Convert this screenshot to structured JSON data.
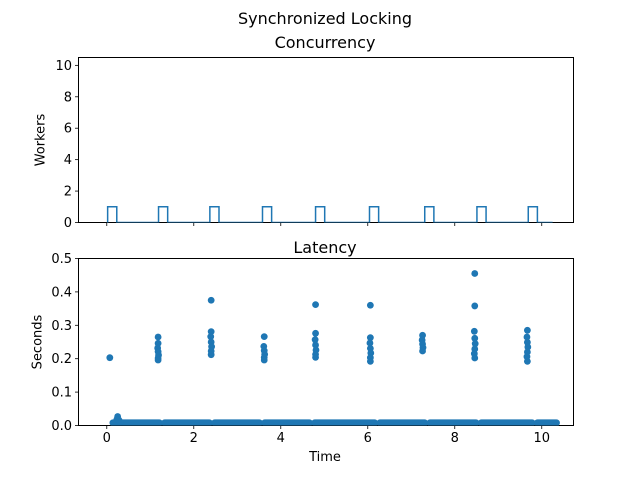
{
  "figure": {
    "suptitle": "Synchronized Locking",
    "background": "#ffffff",
    "accent": "#1f77b4"
  },
  "chart_data": [
    {
      "type": "line",
      "title": "Concurrency",
      "ylabel": "Workers",
      "xlabel": "",
      "xlim": [
        -0.65,
        10.73
      ],
      "ylim": [
        0,
        10.5
      ],
      "xtick_vals": [
        0,
        2,
        4,
        6,
        8,
        10
      ],
      "xtick_labels": [
        "",
        "",
        "",
        "",
        "",
        ""
      ],
      "ytick_vals": [
        0,
        2,
        4,
        6,
        8,
        10
      ],
      "ytick_labels": [
        "0",
        "2",
        "4",
        "6",
        "8",
        "10"
      ],
      "color": "#1f77b4",
      "step_base": 0,
      "pulse_height": 1,
      "pulses": [
        [
          0.02,
          0.23
        ],
        [
          1.19,
          1.4
        ],
        [
          2.37,
          2.58
        ],
        [
          3.58,
          3.79
        ],
        [
          4.8,
          5.01
        ],
        [
          6.04,
          6.25
        ],
        [
          7.31,
          7.52
        ],
        [
          8.51,
          8.72
        ],
        [
          9.69,
          9.9
        ]
      ],
      "line_end": 10.25,
      "grid": false,
      "legend": null
    },
    {
      "type": "scatter",
      "title": "Latency",
      "ylabel": "Seconds",
      "xlabel": "Time",
      "xlim": [
        -0.65,
        10.73
      ],
      "ylim": [
        0,
        0.5
      ],
      "xtick_vals": [
        0,
        2,
        4,
        6,
        8,
        10
      ],
      "xtick_labels": [
        "0",
        "2",
        "4",
        "6",
        "8",
        "10"
      ],
      "ytick_vals": [
        0,
        0.1,
        0.2,
        0.3,
        0.4,
        0.5
      ],
      "ytick_labels": [
        "0.0",
        "0.1",
        "0.2",
        "0.3",
        "0.4",
        "0.5"
      ],
      "color": "#1f77b4",
      "marker_radius_px": 3.4,
      "points": [
        [
          0.07,
          0.203
        ],
        [
          0.2,
          0.01
        ],
        [
          0.23,
          0.018
        ],
        [
          0.25,
          0.027
        ],
        [
          0.28,
          0.016
        ],
        [
          0.31,
          0.01
        ],
        [
          1.18,
          0.265
        ],
        [
          1.18,
          0.246
        ],
        [
          1.17,
          0.232
        ],
        [
          1.18,
          0.221
        ],
        [
          1.19,
          0.211
        ],
        [
          1.18,
          0.202
        ],
        [
          1.18,
          0.196
        ],
        [
          2.4,
          0.375
        ],
        [
          2.4,
          0.281
        ],
        [
          2.39,
          0.266
        ],
        [
          2.4,
          0.25
        ],
        [
          2.41,
          0.236
        ],
        [
          2.4,
          0.223
        ],
        [
          2.4,
          0.212
        ],
        [
          3.62,
          0.266
        ],
        [
          3.61,
          0.237
        ],
        [
          3.62,
          0.224
        ],
        [
          3.63,
          0.213
        ],
        [
          3.62,
          0.204
        ],
        [
          3.62,
          0.196
        ],
        [
          4.8,
          0.362
        ],
        [
          4.8,
          0.276
        ],
        [
          4.79,
          0.257
        ],
        [
          4.8,
          0.241
        ],
        [
          4.81,
          0.226
        ],
        [
          4.8,
          0.213
        ],
        [
          4.8,
          0.204
        ],
        [
          6.06,
          0.36
        ],
        [
          6.06,
          0.263
        ],
        [
          6.05,
          0.247
        ],
        [
          6.06,
          0.231
        ],
        [
          6.07,
          0.217
        ],
        [
          6.06,
          0.203
        ],
        [
          6.06,
          0.192
        ],
        [
          7.26,
          0.27
        ],
        [
          7.25,
          0.256
        ],
        [
          7.26,
          0.244
        ],
        [
          7.27,
          0.233
        ],
        [
          7.26,
          0.223
        ],
        [
          8.46,
          0.455
        ],
        [
          8.46,
          0.358
        ],
        [
          8.45,
          0.282
        ],
        [
          8.46,
          0.261
        ],
        [
          8.47,
          0.245
        ],
        [
          8.46,
          0.229
        ],
        [
          8.45,
          0.215
        ],
        [
          8.46,
          0.202
        ],
        [
          9.67,
          0.285
        ],
        [
          9.66,
          0.265
        ],
        [
          9.67,
          0.249
        ],
        [
          9.68,
          0.235
        ],
        [
          9.67,
          0.22
        ],
        [
          9.66,
          0.206
        ],
        [
          9.67,
          0.192
        ]
      ],
      "low_band": {
        "y": 0.008,
        "segments": [
          [
            0.14,
            1.21
          ],
          [
            1.33,
            2.36
          ],
          [
            2.48,
            3.51
          ],
          [
            3.63,
            4.66
          ],
          [
            4.78,
            6.16
          ],
          [
            6.28,
            7.31
          ],
          [
            7.43,
            8.49
          ],
          [
            8.61,
            9.78
          ],
          [
            9.9,
            10.34
          ]
        ]
      },
      "grid": false,
      "legend": null
    }
  ]
}
